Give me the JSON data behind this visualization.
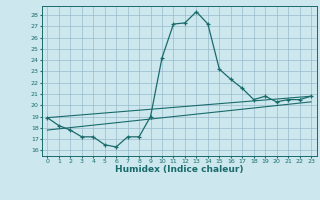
{
  "xlabel": "Humidex (Indice chaleur)",
  "bg_color": "#cce8ee",
  "grid_color": "#99bbcc",
  "line_color": "#1a6b6b",
  "xlim": [
    -0.5,
    23.5
  ],
  "ylim": [
    15.5,
    28.8
  ],
  "yticks": [
    16,
    17,
    18,
    19,
    20,
    21,
    22,
    23,
    24,
    25,
    26,
    27,
    28
  ],
  "xticks": [
    0,
    1,
    2,
    3,
    4,
    5,
    6,
    7,
    8,
    9,
    10,
    11,
    12,
    13,
    14,
    15,
    16,
    17,
    18,
    19,
    20,
    21,
    22,
    23
  ],
  "main_series": [
    [
      0,
      18.9
    ],
    [
      1,
      18.2
    ],
    [
      2,
      17.8
    ],
    [
      3,
      17.2
    ],
    [
      4,
      17.2
    ],
    [
      5,
      16.5
    ],
    [
      6,
      16.3
    ],
    [
      7,
      17.2
    ],
    [
      8,
      17.2
    ],
    [
      9,
      19.0
    ],
    [
      10,
      24.2
    ],
    [
      11,
      27.2
    ],
    [
      12,
      27.3
    ],
    [
      13,
      28.3
    ],
    [
      14,
      27.2
    ],
    [
      15,
      23.2
    ],
    [
      16,
      22.3
    ],
    [
      17,
      21.5
    ],
    [
      18,
      20.5
    ],
    [
      19,
      20.8
    ],
    [
      20,
      20.3
    ],
    [
      21,
      20.5
    ],
    [
      22,
      20.5
    ],
    [
      23,
      20.8
    ]
  ],
  "line2_series": [
    [
      0,
      18.9
    ],
    [
      23,
      20.8
    ]
  ],
  "line3_series": [
    [
      0,
      17.8
    ],
    [
      23,
      20.3
    ]
  ]
}
